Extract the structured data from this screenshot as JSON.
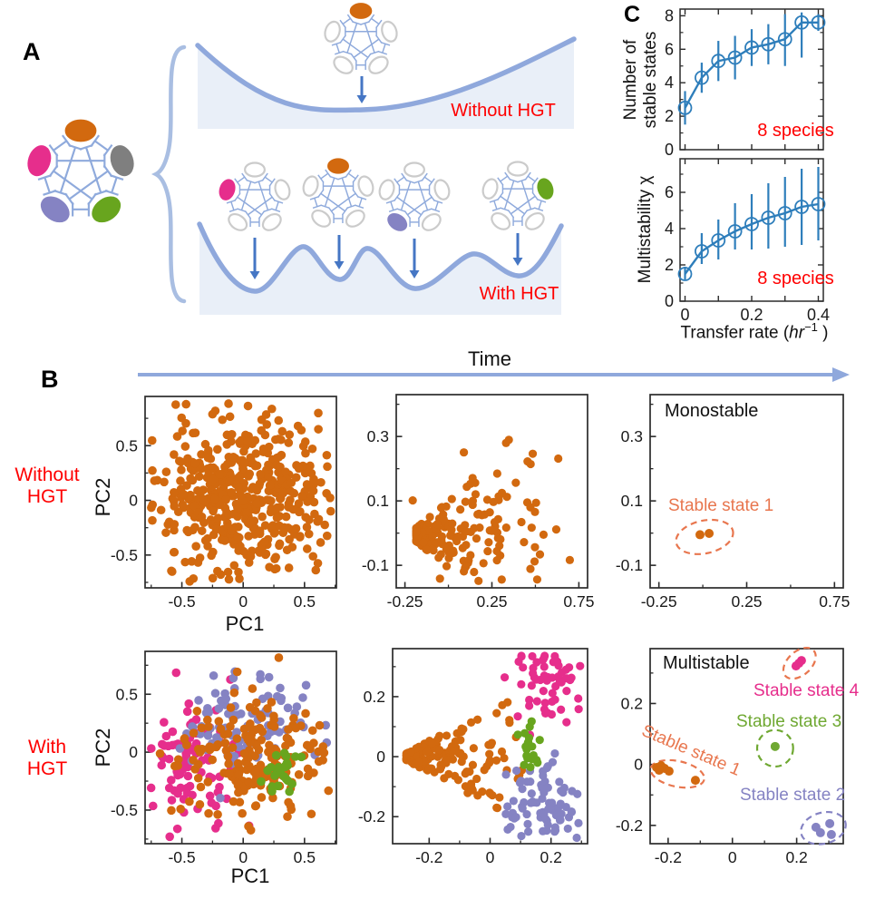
{
  "panel_a": {
    "label": "A",
    "without_hgt": "Without HGT",
    "with_hgt": "With HGT",
    "colors": {
      "orange": "#D2690F",
      "pink": "#E62E8C",
      "purple": "#8583C3",
      "green": "#68A51E",
      "gray": "#7F7F7F",
      "white_node_stroke": "#CBCBCB",
      "edge": "#8FAADC",
      "landscape_stroke": "#8FA8DC",
      "landscape_fill": "#E9EFF8",
      "arrow": "#4576C4",
      "red": "#FF0000",
      "brace": "#A9BEE2"
    },
    "networks": {
      "main": [
        "orange",
        "gray",
        "green",
        "purple",
        "pink"
      ],
      "top": [
        "orange",
        "white",
        "white",
        "white",
        "white"
      ],
      "h1": [
        "white",
        "white",
        "white",
        "white",
        "pink"
      ],
      "h2": [
        "orange",
        "white",
        "white",
        "white",
        "white"
      ],
      "h3": [
        "white",
        "white",
        "white",
        "purple",
        "white"
      ],
      "h4": [
        "white",
        "green",
        "white",
        "white",
        "white"
      ]
    }
  },
  "panel_b": {
    "label": "B",
    "time_label": "Time",
    "row1_label": [
      "Without",
      "HGT"
    ],
    "row2_label": [
      "With",
      "HGT"
    ],
    "pc1": "PC1",
    "pc2": "PC2",
    "monostable": "Monostable",
    "multistable": "Multistable",
    "stable_states": [
      "Stable state 1",
      "Stable state 2",
      "Stable state 3",
      "Stable state 4"
    ],
    "state_colors": {
      "s1": "#E8764E",
      "s2": "#8583C3",
      "s3": "#6FA832",
      "s4": "#E62E8C"
    },
    "time_arrow_color": "#8FA8DC"
  },
  "panel_c": {
    "label": "C",
    "ylabel_top": [
      "Number of",
      "stable states"
    ],
    "ylabel_bottom": "Multistability χ",
    "xlabel": {
      "prefix": "Transfer rate (",
      "italic": "hr",
      "sup": "−1",
      "suffix": " )"
    },
    "annotation_top": "8 species",
    "annotation_bottom": "8 species",
    "line_color": "#2E7EBB",
    "annotation_color": "#FF0000"
  },
  "chart_data": [
    {
      "id": "c_top",
      "type": "line-errorbar",
      "ylabel": "Number of stable states",
      "annotation": "8 species",
      "x": [
        0,
        0.05,
        0.1,
        0.15,
        0.2,
        0.25,
        0.3,
        0.35,
        0.4
      ],
      "y": [
        2.5,
        4.3,
        5.3,
        5.5,
        6.1,
        6.3,
        6.6,
        7.6,
        7.6
      ],
      "err_lo": [
        1.5,
        3.4,
        4.1,
        4.2,
        5.0,
        5.1,
        5.0,
        5.5,
        7.1
      ],
      "err_hi": [
        3.5,
        5.2,
        6.5,
        6.8,
        7.2,
        7.5,
        8.1,
        8.2,
        8.1
      ],
      "xlim": [
        -0.015,
        0.415
      ],
      "ylim": [
        0,
        8.4
      ],
      "xticks": [
        0,
        0.1,
        0.2,
        0.3,
        0.4
      ],
      "xtick_labels": [
        "",
        "",
        "",
        "",
        ""
      ],
      "yticks": [
        0,
        2,
        4,
        6,
        8
      ],
      "ytick_labels": [
        "0",
        "2",
        "4",
        "6",
        "8"
      ],
      "yticks_minor": [
        1,
        3,
        5,
        7
      ],
      "color": "#2E7EBB",
      "marker": "open-circle"
    },
    {
      "id": "c_bottom",
      "type": "line-errorbar",
      "ylabel": "Multistability χ",
      "xlabel": "Transfer rate (hr−1)",
      "annotation": "8 species",
      "x": [
        0,
        0.05,
        0.1,
        0.15,
        0.2,
        0.25,
        0.3,
        0.35,
        0.4
      ],
      "y": [
        1.5,
        2.75,
        3.35,
        3.85,
        4.25,
        4.6,
        4.85,
        5.2,
        5.35
      ],
      "err_lo": [
        1.2,
        2.05,
        2.3,
        2.85,
        2.85,
        2.9,
        3.0,
        3.1,
        3.35
      ],
      "err_hi": [
        1.9,
        3.75,
        4.5,
        5.4,
        5.9,
        6.5,
        6.85,
        7.3,
        7.4
      ],
      "xlim": [
        -0.015,
        0.415
      ],
      "ylim": [
        0,
        7.85
      ],
      "xticks": [
        0,
        0.1,
        0.2,
        0.3,
        0.4
      ],
      "xtick_labels": [
        "0",
        "",
        "0.2",
        "",
        "0.4"
      ],
      "yticks": [
        0,
        2,
        4,
        6
      ],
      "ytick_labels": [
        "0",
        "2",
        "4",
        "6"
      ],
      "yticks_minor": [
        1,
        3,
        5,
        7
      ],
      "color": "#2E7EBB",
      "marker": "open-circle"
    },
    {
      "id": "b1",
      "type": "scatter",
      "xlabel": "PC1",
      "ylabel": "PC2",
      "xlim": [
        -0.8,
        0.76
      ],
      "ylim": [
        -0.8,
        0.95
      ],
      "xticks": {
        "major": [
          -0.5,
          0,
          0.5
        ],
        "labels": [
          "-0.5",
          "0",
          "0.5"
        ],
        "minor": [
          -0.75,
          -0.25,
          0.25,
          0.75
        ]
      },
      "yticks": {
        "major": [
          -0.5,
          0,
          0.5
        ],
        "labels": [
          "-0.5",
          "0",
          "0.5"
        ],
        "minor": [
          -0.75,
          -0.25,
          0.25,
          0.75
        ]
      },
      "dot_r": 4.8,
      "clusters": [
        {
          "shape": "gauss",
          "n": 480,
          "cx": 0.0,
          "cy": 0.04,
          "sx": 0.36,
          "sy": 0.37,
          "color": "#D2690F",
          "seed": 11
        }
      ]
    },
    {
      "id": "b2",
      "type": "scatter",
      "xlim": [
        -0.3,
        0.8
      ],
      "ylim": [
        -0.17,
        0.43
      ],
      "xticks": {
        "major": [
          -0.25,
          0.25,
          0.75
        ],
        "labels": [
          "-0.25",
          "0.25",
          "0.75"
        ],
        "minor": [
          0,
          0.5
        ]
      },
      "yticks": {
        "major": [
          -0.1,
          0.1,
          0.3
        ],
        "labels": [
          "-0.1",
          "0.1",
          "0.3"
        ],
        "minor": [
          0,
          0.2,
          0.4
        ]
      },
      "dot_r": 4.6,
      "clusters": [
        {
          "shape": "fan",
          "n": 165,
          "ax": -0.185,
          "ay": -0.005,
          "len": 0.5,
          "spread": 0.13,
          "decay": 2.4,
          "color": "#D2690F",
          "seed": 21
        },
        {
          "shape": "gauss",
          "n": 46,
          "cx": 0.32,
          "cy": 0.06,
          "sx": 0.2,
          "sy": 0.11,
          "color": "#D2690F",
          "seed": 22
        }
      ]
    },
    {
      "id": "b3",
      "type": "scatter",
      "title": "Monostable",
      "xlim": [
        -0.3,
        0.8
      ],
      "ylim": [
        -0.17,
        0.43
      ],
      "xticks": {
        "major": [
          -0.25,
          0.25,
          0.75
        ],
        "labels": [
          "-0.25",
          "0.25",
          "0.75"
        ],
        "minor": [
          0,
          0.5
        ]
      },
      "yticks": {
        "major": [
          -0.1,
          0.1,
          0.3
        ],
        "labels": [
          "-0.1",
          "0.1",
          "0.3"
        ],
        "minor": [
          0,
          0.2,
          0.4
        ]
      },
      "dot_r": 5,
      "clusters": [],
      "annotations": {
        "label": "Stable state 1",
        "dots": [
          {
            "x": -0.016,
            "y": -0.005,
            "color": "#D2690F"
          },
          {
            "x": 0.036,
            "y": -0.001,
            "color": "#D2690F"
          }
        ],
        "ellipses": [
          {
            "cx": 0.01,
            "cy": -0.012,
            "rx": 0.165,
            "ry": 0.051,
            "rot": -12,
            "color": "#E8764E"
          }
        ]
      }
    },
    {
      "id": "b4",
      "type": "scatter",
      "xlabel": "PC1",
      "ylabel": "PC2",
      "xlim": [
        -0.8,
        0.76
      ],
      "ylim": [
        -0.79,
        0.87
      ],
      "xticks": {
        "major": [
          -0.5,
          0,
          0.5
        ],
        "labels": [
          "-0.5",
          "0",
          "0.5"
        ],
        "minor": [
          -0.75,
          -0.25,
          0.25,
          0.75
        ]
      },
      "yticks": {
        "major": [
          -0.5,
          0,
          0.5
        ],
        "labels": [
          "-0.5",
          "0",
          "0.5"
        ],
        "minor": [
          -0.75,
          -0.25,
          0.25,
          0.75
        ]
      },
      "dot_r": 4.8,
      "clusters": [
        {
          "shape": "gauss",
          "n": 88,
          "cx": -0.42,
          "cy": -0.08,
          "sx": 0.2,
          "sy": 0.3,
          "color": "#E62E8C",
          "seed": 41
        },
        {
          "shape": "gauss",
          "n": 95,
          "cx": 0.0,
          "cy": 0.26,
          "sx": 0.28,
          "sy": 0.2,
          "color": "#8583C3",
          "seed": 42
        },
        {
          "shape": "gauss",
          "n": 195,
          "cx": 0.1,
          "cy": -0.1,
          "sx": 0.3,
          "sy": 0.28,
          "color": "#D2690F",
          "seed": 43
        },
        {
          "shape": "gauss",
          "n": 24,
          "cx": 0.33,
          "cy": -0.2,
          "sx": 0.1,
          "sy": 0.12,
          "color": "#68A51E",
          "seed": 44
        }
      ]
    },
    {
      "id": "b5",
      "type": "scatter",
      "xlim": [
        -0.32,
        0.32
      ],
      "ylim": [
        -0.29,
        0.36
      ],
      "xticks": {
        "major": [
          -0.2,
          0,
          0.2
        ],
        "labels": [
          "-0.2",
          "0",
          "0.2"
        ],
        "minor": [
          -0.1,
          0.1,
          0.3
        ]
      },
      "yticks": {
        "major": [
          -0.2,
          0,
          0.2
        ],
        "labels": [
          "-0.2",
          "0",
          "0.2"
        ],
        "minor": [
          -0.1,
          0.1,
          0.3
        ]
      },
      "dot_r": 4.6,
      "clusters": [
        {
          "shape": "tri",
          "n": 155,
          "ax": -0.275,
          "ay": 0.0,
          "len": 0.38,
          "spread": 0.21,
          "decay": 1.6,
          "color": "#D2690F",
          "seed": 51
        },
        {
          "shape": "gauss",
          "n": 58,
          "cx": 0.19,
          "cy": 0.245,
          "sx": 0.065,
          "sy": 0.06,
          "color": "#E62E8C",
          "seed": 53
        },
        {
          "shape": "gauss",
          "n": 78,
          "cx": 0.2,
          "cy": -0.17,
          "sx": 0.07,
          "sy": 0.075,
          "color": "#8583C3",
          "seed": 52
        },
        {
          "shape": "gauss",
          "n": 20,
          "cx": 0.135,
          "cy": 0.025,
          "sx": 0.028,
          "sy": 0.035,
          "color": "#68A51E",
          "seed": 54
        }
      ]
    },
    {
      "id": "b6",
      "type": "scatter",
      "title": "Multistable",
      "xlim": [
        -0.256,
        0.345
      ],
      "ylim": [
        -0.26,
        0.38
      ],
      "xticks": {
        "major": [
          -0.2,
          0,
          0.2
        ],
        "labels": [
          "-0.2",
          "0",
          "0.2"
        ],
        "minor": [
          -0.1,
          0.1,
          0.3
        ]
      },
      "yticks": {
        "major": [
          -0.2,
          0,
          0.2
        ],
        "labels": [
          "-0.2",
          "0",
          "0.2"
        ],
        "minor": [
          -0.1,
          0.1,
          0.3
        ]
      },
      "dot_r": 5,
      "clusters": [],
      "annotations": {
        "labels": [
          "Stable state 1",
          "Stable state 2",
          "Stable state 3",
          "Stable state 4"
        ],
        "dots": [
          {
            "x": -0.236,
            "y": -0.01,
            "color": "#D2690F"
          },
          {
            "x": -0.222,
            "y": -0.004,
            "color": "#D2690F"
          },
          {
            "x": -0.211,
            "y": -0.013,
            "color": "#D2690F"
          },
          {
            "x": -0.197,
            "y": -0.022,
            "color": "#D2690F"
          },
          {
            "x": -0.228,
            "y": -0.019,
            "color": "#D2690F"
          },
          {
            "x": -0.115,
            "y": -0.052,
            "color": "#D2690F"
          },
          {
            "x": 0.198,
            "y": 0.323,
            "color": "#E62E8C"
          },
          {
            "x": 0.215,
            "y": 0.341,
            "color": "#E62E8C"
          },
          {
            "x": 0.207,
            "y": 0.332,
            "color": "#E62E8C"
          },
          {
            "x": 0.133,
            "y": 0.059,
            "color": "#6FA832"
          },
          {
            "x": 0.26,
            "y": -0.206,
            "color": "#8583C3"
          },
          {
            "x": 0.303,
            "y": -0.194,
            "color": "#8583C3"
          },
          {
            "x": 0.308,
            "y": -0.23,
            "color": "#8583C3"
          },
          {
            "x": 0.274,
            "y": -0.224,
            "color": "#8583C3"
          }
        ],
        "ellipses": [
          {
            "cx": -0.171,
            "cy": -0.031,
            "rx": 0.085,
            "ry": 0.042,
            "rot": 12,
            "color": "#E8764E"
          },
          {
            "cx": 0.209,
            "cy": 0.332,
            "rx": 0.059,
            "ry": 0.039,
            "rot": -42,
            "color": "#E8764E"
          },
          {
            "cx": 0.133,
            "cy": 0.053,
            "rx": 0.056,
            "ry": 0.06,
            "rot": 0,
            "color": "#6FA832"
          },
          {
            "cx": 0.283,
            "cy": -0.209,
            "rx": 0.071,
            "ry": 0.051,
            "rot": -15,
            "color": "#8583C3"
          }
        ]
      }
    }
  ]
}
